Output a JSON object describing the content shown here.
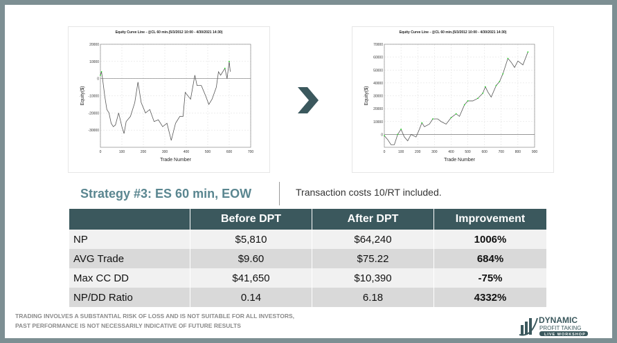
{
  "charts": [
    {
      "title": "Equity Curve Line - @CL 60 min.(5/3/2012 10:00 - 4/30/2021 14:30)",
      "xlabel": "Trade Number",
      "ylabel": "Equity($)",
      "xlim": [
        0,
        700
      ],
      "ylim": [
        -40000,
        20000
      ],
      "xticks": [
        0,
        100,
        200,
        300,
        400,
        500,
        600,
        700
      ],
      "yticks": [
        -30000,
        -20000,
        -10000,
        0,
        10000,
        20000
      ],
      "points": [
        [
          0,
          2000
        ],
        [
          5,
          4000
        ],
        [
          10,
          0
        ],
        [
          20,
          -10000
        ],
        [
          30,
          -18000
        ],
        [
          40,
          -20000
        ],
        [
          50,
          -26000
        ],
        [
          60,
          -28000
        ],
        [
          70,
          -27000
        ],
        [
          85,
          -20000
        ],
        [
          100,
          -28000
        ],
        [
          110,
          -32000
        ],
        [
          120,
          -25000
        ],
        [
          140,
          -22000
        ],
        [
          160,
          -14000
        ],
        [
          175,
          -2000
        ],
        [
          190,
          -14000
        ],
        [
          210,
          -20000
        ],
        [
          230,
          -18000
        ],
        [
          250,
          -25000
        ],
        [
          270,
          -24000
        ],
        [
          290,
          -28000
        ],
        [
          310,
          -26000
        ],
        [
          330,
          -36000
        ],
        [
          350,
          -26000
        ],
        [
          370,
          -22000
        ],
        [
          385,
          -22000
        ],
        [
          395,
          -8000
        ],
        [
          420,
          -12000
        ],
        [
          440,
          2000
        ],
        [
          450,
          -4000
        ],
        [
          470,
          -4000
        ],
        [
          490,
          -10000
        ],
        [
          505,
          -15000
        ],
        [
          520,
          -12000
        ],
        [
          540,
          -5000
        ],
        [
          550,
          4000
        ],
        [
          560,
          2000
        ],
        [
          580,
          6000
        ],
        [
          590,
          0
        ],
        [
          600,
          10000
        ],
        [
          605,
          4000
        ]
      ]
    },
    {
      "title": "Equity Curve Line - @CL 60 min.(5/3/2012 10:00 - 4/30/2021 14:30)",
      "xlabel": "Trade Number",
      "ylabel": "Equity($)",
      "xlim": [
        0,
        900
      ],
      "ylim": [
        -10000,
        70000
      ],
      "xticks": [
        0,
        100,
        200,
        300,
        400,
        500,
        600,
        700,
        800,
        900
      ],
      "yticks": [
        0,
        10000,
        20000,
        30000,
        40000,
        50000,
        60000,
        70000
      ],
      "points": [
        [
          0,
          -1000
        ],
        [
          20,
          -4000
        ],
        [
          40,
          -8000
        ],
        [
          60,
          -8000
        ],
        [
          80,
          0
        ],
        [
          100,
          4000
        ],
        [
          120,
          -2000
        ],
        [
          140,
          -5000
        ],
        [
          160,
          0
        ],
        [
          190,
          -2000
        ],
        [
          210,
          4000
        ],
        [
          225,
          9000
        ],
        [
          240,
          6000
        ],
        [
          270,
          8000
        ],
        [
          290,
          12000
        ],
        [
          320,
          12000
        ],
        [
          340,
          10000
        ],
        [
          370,
          8000
        ],
        [
          400,
          13000
        ],
        [
          430,
          16000
        ],
        [
          450,
          14000
        ],
        [
          480,
          23000
        ],
        [
          500,
          26000
        ],
        [
          530,
          26000
        ],
        [
          560,
          28000
        ],
        [
          590,
          32000
        ],
        [
          605,
          37000
        ],
        [
          620,
          33000
        ],
        [
          640,
          29000
        ],
        [
          670,
          38000
        ],
        [
          690,
          41000
        ],
        [
          710,
          47000
        ],
        [
          740,
          59000
        ],
        [
          760,
          56000
        ],
        [
          780,
          52000
        ],
        [
          800,
          57000
        ],
        [
          830,
          54000
        ],
        [
          860,
          64000
        ]
      ]
    }
  ],
  "strategy_title": "Strategy #3: ES 60 min, EOW",
  "transaction_note": "Transaction costs 10/RT included.",
  "table": {
    "headers": [
      "",
      "Before DPT",
      "After DPT",
      "Improvement"
    ],
    "rows": [
      [
        "NP",
        "$5,810",
        "$64,240",
        "1006%"
      ],
      [
        "AVG Trade",
        "$9.60",
        "$75.22",
        "684%"
      ],
      [
        "Max CC DD",
        "$41,650",
        "$10,390",
        "-75%"
      ],
      [
        "NP/DD Ratio",
        "0.14",
        "6.18",
        "4332%"
      ]
    ]
  },
  "disclaimer": [
    "TRADING INVOLVES A SUBSTANTIAL RISK OF LOSS AND IS NOT SUITABLE FOR ALL INVESTORS,",
    "PAST PERFORMANCE IS NOT NECESSARILY INDICATIVE OF FUTURE RESULTS"
  ],
  "logo": {
    "line1": "DYNAMIC",
    "line2": "PROFIT TAKING",
    "line3": "LIVE WORKSHOP"
  },
  "colors": {
    "frame": "#7d8f93",
    "header": "#3b585d",
    "title": "#5a8690",
    "green": "#22dd22"
  }
}
